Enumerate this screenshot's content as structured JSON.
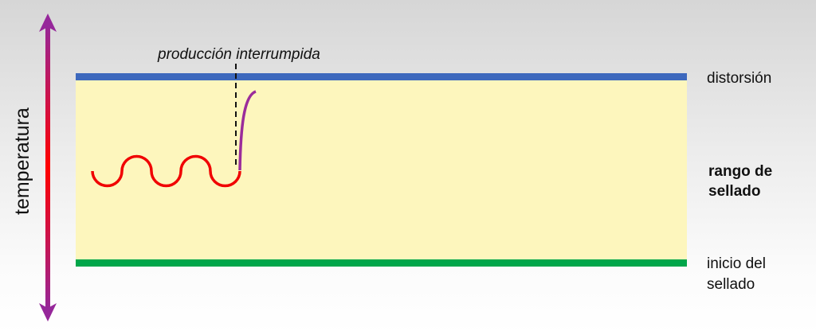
{
  "axis_label": "temperatura",
  "annotation": "producción interrumpida",
  "levels": {
    "top": "distorsión",
    "middle_line1": "rango de",
    "middle_line2": "sellado",
    "bottom_line1": "inicio del",
    "bottom_line2": "sellado"
  },
  "colors": {
    "upper_limit": "#3d68bd",
    "lower_limit": "#00a64a",
    "range_fill": "#fdf6bd",
    "wave": "#f00000",
    "rise": "#9b2c9b"
  }
}
